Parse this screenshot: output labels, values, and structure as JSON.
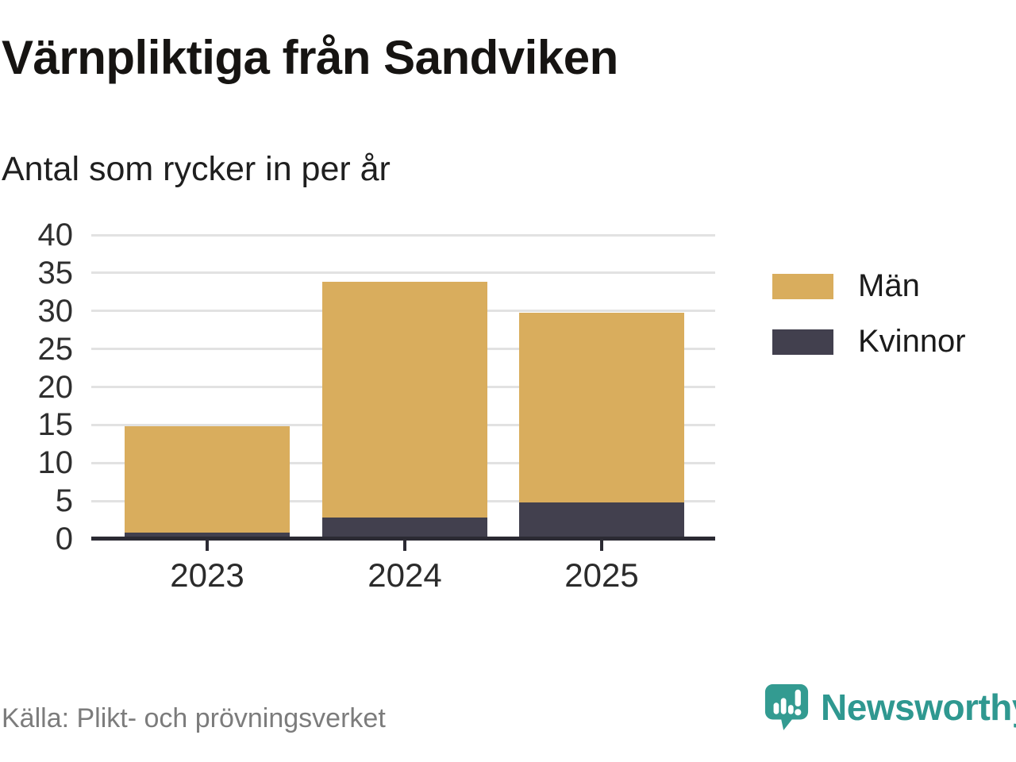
{
  "header": {
    "title": "Värnpliktiga från Sandviken",
    "subtitle": "Antal som rycker in per år"
  },
  "chart_data": {
    "type": "bar",
    "stacked": true,
    "title": "Värnpliktiga från Sandviken",
    "subtitle": "Antal som rycker in per år",
    "xlabel": "",
    "ylabel": "",
    "categories": [
      "2023",
      "2024",
      "2025"
    ],
    "series": [
      {
        "name": "Män",
        "color": "#d9ad5d",
        "values": [
          14,
          31,
          25
        ]
      },
      {
        "name": "Kvinnor",
        "color": "#42404e",
        "values": [
          1,
          3,
          5
        ]
      }
    ],
    "stack_totals": [
      15,
      34,
      30
    ],
    "ylim": [
      0,
      40
    ],
    "yticks": [
      0,
      5,
      10,
      15,
      20,
      25,
      30,
      35,
      40
    ],
    "grid": "horizontal",
    "legend_position": "right"
  },
  "legend": {
    "items": [
      {
        "label": "Män",
        "color": "#d9ad5d"
      },
      {
        "label": "Kvinnor",
        "color": "#42404e"
      }
    ]
  },
  "footer": {
    "source": "Källa: Plikt- och prövningsverket",
    "brand": "Newsworthy",
    "brand_color": "#2f9890"
  },
  "colors": {
    "men_bar": "#d9ad5d",
    "women_bar": "#42404e",
    "gridline": "#e2e2e2",
    "axis": "#2b2a33",
    "brand_teal": "#2f9890",
    "source_gray": "#7c7c7c"
  }
}
